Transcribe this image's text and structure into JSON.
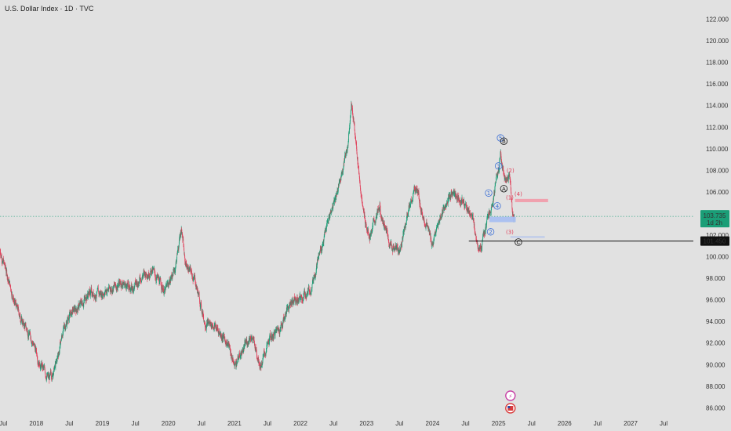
{
  "header": {
    "title": "U.S. Dollar Index · 1D · TVC"
  },
  "colors": {
    "background": "#e1e1e1",
    "up": "#1a9e77",
    "down": "#e0405a",
    "last_price_bg": "#1a9e77",
    "level_line": "#111111",
    "wave_blue": "#3b6fd6",
    "wave_red": "#e0405a",
    "zone_red": "#f29aa8",
    "zone_blue": "#a9bff0"
  },
  "price_badge": {
    "price": "103.735",
    "countdown": "1d 2h"
  },
  "level_badge": {
    "price": "101.450"
  },
  "hidden_label": "102.000",
  "wave_labels_blue": [
    "1",
    "2",
    "3",
    "4",
    "5"
  ],
  "wave_labels_red": [
    "(2)",
    "(4)",
    "(1)",
    "(3)"
  ],
  "wave_labels_black": [
    "A",
    "B",
    "C"
  ],
  "chart_data": {
    "type": "candlestick",
    "title": "U.S. Dollar Index · 1D · TVC",
    "y_ticks": [
      86,
      88,
      90,
      92,
      94,
      96,
      98,
      100,
      102,
      104,
      106,
      108,
      110,
      112,
      114,
      116,
      118,
      120,
      122
    ],
    "y_tick_labels": [
      "86.000",
      "88.000",
      "90.000",
      "92.000",
      "94.000",
      "96.000",
      "98.000",
      "100.000",
      "102.000",
      "104.000",
      "106.000",
      "108.000",
      "110.000",
      "112.000",
      "114.000",
      "116.000",
      "118.000",
      "120.000",
      "122.000"
    ],
    "ylim": [
      85.3,
      123.2
    ],
    "xlim": [
      2017.45,
      2027.95
    ],
    "x_ticks": [
      {
        "label": "Jul",
        "t": 2017.5
      },
      {
        "label": "2018",
        "t": 2018.0
      },
      {
        "label": "Jul",
        "t": 2018.5
      },
      {
        "label": "2019",
        "t": 2019.0
      },
      {
        "label": "Jul",
        "t": 2019.5
      },
      {
        "label": "2020",
        "t": 2020.0
      },
      {
        "label": "Jul",
        "t": 2020.5
      },
      {
        "label": "2021",
        "t": 2021.0
      },
      {
        "label": "Jul",
        "t": 2021.5
      },
      {
        "label": "2022",
        "t": 2022.0
      },
      {
        "label": "Jul",
        "t": 2022.5
      },
      {
        "label": "2023",
        "t": 2023.0
      },
      {
        "label": "Jul",
        "t": 2023.5
      },
      {
        "label": "2024",
        "t": 2024.0
      },
      {
        "label": "Jul",
        "t": 2024.5
      },
      {
        "label": "2025",
        "t": 2025.0
      },
      {
        "label": "Jul",
        "t": 2025.5
      },
      {
        "label": "2026",
        "t": 2026.0
      },
      {
        "label": "Jul",
        "t": 2026.5
      },
      {
        "label": "2027",
        "t": 2027.0
      },
      {
        "label": "Jul",
        "t": 2027.5
      }
    ],
    "price_path": [
      [
        2017.45,
        100.6
      ],
      [
        2017.55,
        98.5
      ],
      [
        2017.68,
        95.6
      ],
      [
        2017.8,
        93.8
      ],
      [
        2017.92,
        92.6
      ],
      [
        2018.05,
        90.2
      ],
      [
        2018.12,
        89.4
      ],
      [
        2018.2,
        88.6
      ],
      [
        2018.3,
        90.0
      ],
      [
        2018.4,
        93.0
      ],
      [
        2018.5,
        94.6
      ],
      [
        2018.65,
        95.4
      ],
      [
        2018.8,
        96.7
      ],
      [
        2018.95,
        96.5
      ],
      [
        2019.1,
        97.0
      ],
      [
        2019.3,
        97.6
      ],
      [
        2019.45,
        97.0
      ],
      [
        2019.6,
        98.2
      ],
      [
        2019.75,
        98.8
      ],
      [
        2019.95,
        96.8
      ],
      [
        2020.1,
        98.9
      ],
      [
        2020.2,
        102.8
      ],
      [
        2020.25,
        99.5
      ],
      [
        2020.4,
        97.9
      ],
      [
        2020.55,
        94.0
      ],
      [
        2020.7,
        93.6
      ],
      [
        2020.9,
        92.0
      ],
      [
        2021.0,
        89.9
      ],
      [
        2021.25,
        92.8
      ],
      [
        2021.4,
        90.0
      ],
      [
        2021.55,
        92.5
      ],
      [
        2021.7,
        93.5
      ],
      [
        2021.85,
        95.9
      ],
      [
        2022.0,
        96.0
      ],
      [
        2022.15,
        97.0
      ],
      [
        2022.3,
        100.5
      ],
      [
        2022.45,
        104.0
      ],
      [
        2022.6,
        107.0
      ],
      [
        2022.72,
        110.5
      ],
      [
        2022.77,
        114.5
      ],
      [
        2022.85,
        110.0
      ],
      [
        2022.95,
        104.0
      ],
      [
        2023.05,
        102.0
      ],
      [
        2023.2,
        104.5
      ],
      [
        2023.35,
        101.2
      ],
      [
        2023.5,
        100.5
      ],
      [
        2023.6,
        103.5
      ],
      [
        2023.75,
        106.5
      ],
      [
        2023.85,
        104.0
      ],
      [
        2024.0,
        101.2
      ],
      [
        2024.15,
        104.2
      ],
      [
        2024.3,
        105.9
      ],
      [
        2024.45,
        105.2
      ],
      [
        2024.58,
        104.0
      ],
      [
        2024.68,
        101.4
      ],
      [
        2024.74,
        100.8
      ],
      [
        2024.82,
        103.0
      ],
      [
        2024.9,
        105.0
      ],
      [
        2025.0,
        108.0
      ],
      [
        2025.03,
        109.5
      ],
      [
        2025.1,
        107.0
      ],
      [
        2025.17,
        107.5
      ],
      [
        2025.22,
        103.8
      ],
      [
        2025.24,
        103.7
      ]
    ],
    "reference_price": 103.735,
    "annotations": {
      "level_price": 101.45,
      "zone_red": {
        "t0": 2025.25,
        "t1": 2025.75,
        "p0": 105.05,
        "p1": 105.35
      },
      "zone_blue": {
        "t0": 2024.86,
        "t1": 2025.26,
        "p0": 103.2,
        "p1": 103.7
      },
      "zone_light": {
        "t0": 2025.18,
        "t1": 2025.7,
        "p0": 101.75,
        "p1": 101.9
      },
      "labels_blue": [
        {
          "t": 2024.85,
          "p": 105.9
        },
        {
          "t": 2024.88,
          "p": 102.3
        },
        {
          "t": 2025.0,
          "p": 108.4
        },
        {
          "t": 2024.98,
          "p": 104.7
        },
        {
          "t": 2025.03,
          "p": 111.0
        }
      ],
      "labels_red": [
        {
          "t": 2025.18,
          "p": 108.0
        },
        {
          "t": 2025.3,
          "p": 105.8
        },
        {
          "t": 2025.17,
          "p": 105.5
        },
        {
          "t": 2025.17,
          "p": 102.3
        }
      ],
      "labels_black": [
        {
          "t": 2025.08,
          "p": 106.3
        },
        {
          "t": 2025.08,
          "p": 110.7
        },
        {
          "t": 2025.3,
          "p": 101.35
        }
      ],
      "bottom_icons_t": 2025.18
    }
  }
}
